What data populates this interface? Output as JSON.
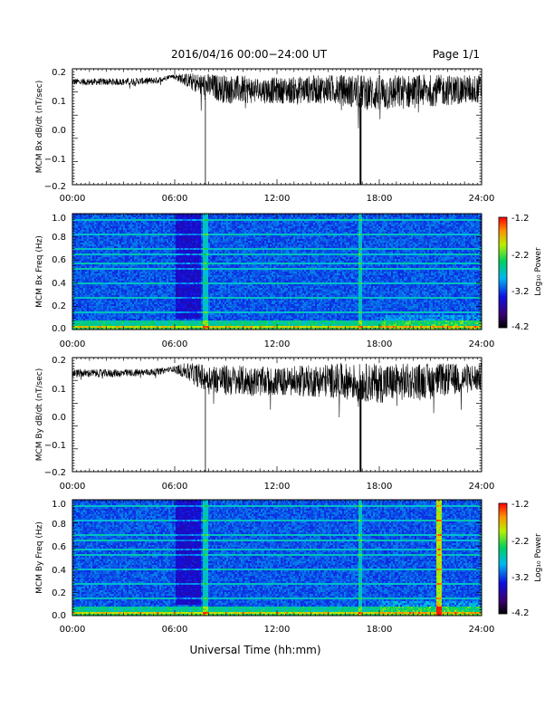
{
  "header": {
    "title": "2016/04/16  00:00−24:00 UT",
    "page": "Page 1/1"
  },
  "footer": {
    "xlabel": "Universal Time (hh:mm)"
  },
  "colorbar": {
    "label": "Log₁₀ Power",
    "ticks": [
      "-1.2",
      "-2.2",
      "-3.2",
      "-4.2"
    ]
  },
  "chart_data": [
    {
      "type": "line",
      "ylabel": "MCM Bx dB/dt (nT/sec)",
      "xlim": [
        0,
        24
      ],
      "ylim": [
        -0.2,
        0.2
      ],
      "xticks": [
        "00:00",
        "06:00",
        "12:00",
        "18:00",
        "24:00"
      ],
      "yticks": [
        "0.2",
        "0.1",
        "0.0",
        "−0.1",
        "−0.2"
      ],
      "profile_x": [
        0,
        3,
        5,
        5.8,
        6.5,
        7.5,
        9,
        12,
        15,
        18,
        21,
        24
      ],
      "profile_center": [
        0.155,
        0.155,
        0.16,
        0.175,
        0.165,
        0.145,
        0.13,
        0.125,
        0.13,
        0.115,
        0.125,
        0.13
      ],
      "profile_amp": [
        0.012,
        0.012,
        0.012,
        0.006,
        0.02,
        0.04,
        0.05,
        0.045,
        0.05,
        0.065,
        0.055,
        0.05
      ],
      "spikes": [
        {
          "x": 7.8,
          "y": -0.2
        },
        {
          "x": 16.9,
          "y": -0.2
        }
      ]
    },
    {
      "type": "heatmap",
      "ylabel": "MCM Bx Freq (Hz)",
      "xlim": [
        0,
        24
      ],
      "ylim": [
        0,
        1.0
      ],
      "xticks": [
        "00:00",
        "06:00",
        "12:00",
        "18:00",
        "24:00"
      ],
      "yticks": [
        "1.0",
        "0.8",
        "0.6",
        "0.4",
        "0.2",
        "0.0"
      ],
      "zlim": [
        -4.2,
        -1.2
      ],
      "vlines": [
        7.8,
        16.9
      ]
    },
    {
      "type": "line",
      "ylabel": "MCM By dB/dt (nT/sec)",
      "xlim": [
        0,
        24
      ],
      "ylim": [
        -0.2,
        0.2
      ],
      "xticks": [
        "00:00",
        "06:00",
        "12:00",
        "18:00",
        "24:00"
      ],
      "yticks": [
        "0.2",
        "0.1",
        "0.0",
        "−0.1",
        "−0.2"
      ],
      "profile_x": [
        0,
        3,
        5,
        5.8,
        6.5,
        7.5,
        9,
        12,
        15,
        18,
        21,
        24
      ],
      "profile_center": [
        0.145,
        0.145,
        0.15,
        0.16,
        0.155,
        0.135,
        0.12,
        0.115,
        0.12,
        0.11,
        0.12,
        0.13
      ],
      "profile_amp": [
        0.014,
        0.014,
        0.012,
        0.008,
        0.025,
        0.045,
        0.055,
        0.05,
        0.06,
        0.07,
        0.06,
        0.05
      ],
      "spikes": [
        {
          "x": 7.8,
          "y": -0.2
        },
        {
          "x": 16.9,
          "y": -0.2
        }
      ]
    },
    {
      "type": "heatmap",
      "ylabel": "MCM By Freq (Hz)",
      "xlim": [
        0,
        24
      ],
      "ylim": [
        0,
        1.0
      ],
      "xticks": [
        "00:00",
        "06:00",
        "12:00",
        "18:00",
        "24:00"
      ],
      "yticks": [
        "1.0",
        "0.8",
        "0.6",
        "0.4",
        "0.2",
        "0.0"
      ],
      "zlim": [
        -4.2,
        -1.2
      ],
      "vlines": [
        7.8,
        16.9,
        21.5
      ]
    }
  ]
}
